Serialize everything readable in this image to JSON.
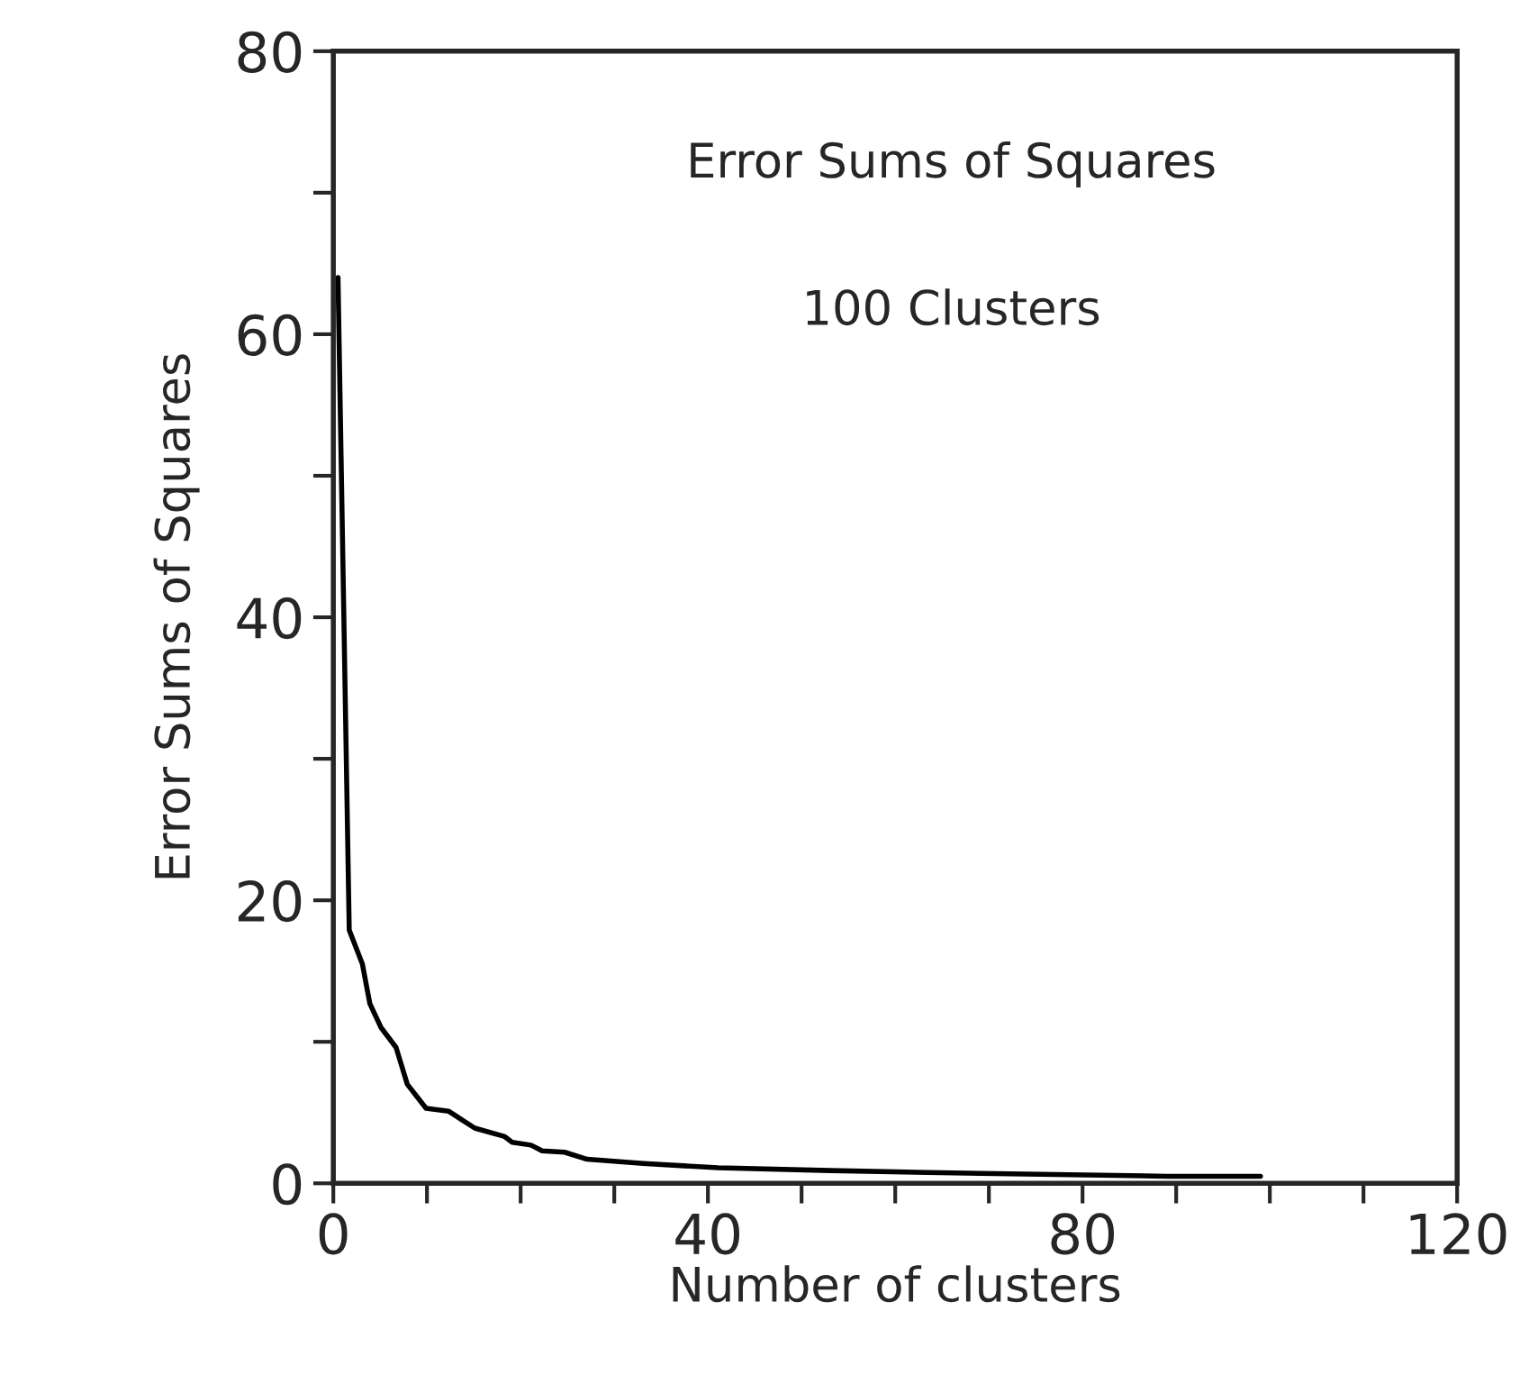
{
  "chart_data": {
    "type": "line",
    "xlabel": "Number of clusters",
    "ylabel": "Error Sums of Squares",
    "annotations": [
      "Error Sums of Squares",
      "100 Clusters"
    ],
    "x": [
      0.5,
      1.7,
      3.1,
      3.9,
      5.1,
      6.7,
      7.9,
      9.9,
      12.3,
      15.1,
      18.3,
      19.1,
      21.1,
      22.3,
      24.7,
      27.1,
      33.1,
      41.1,
      53.1,
      69.1,
      89,
      99
    ],
    "series": [
      {
        "color": "#000000",
        "values": [
          64.0,
          17.9,
          15.5,
          12.7,
          11.0,
          9.6,
          7.0,
          5.3,
          5.1,
          3.9,
          3.3,
          2.9,
          2.7,
          2.3,
          2.2,
          1.7,
          1.4,
          1.1,
          0.9,
          0.7,
          0.5,
          0.5
        ]
      }
    ],
    "xlim": [
      0,
      120
    ],
    "ylim": [
      0,
      80
    ],
    "xticks": [
      0,
      {
        "value": 10,
        "label": null
      },
      {
        "value": 20,
        "label": null
      },
      {
        "value": 30,
        "label": null
      },
      40,
      {
        "value": 50,
        "label": null
      },
      {
        "value": 60,
        "label": null
      },
      {
        "value": 70,
        "label": null
      },
      80,
      {
        "value": 90,
        "label": null
      },
      {
        "value": 100,
        "label": null
      },
      {
        "value": 110,
        "label": null
      },
      120
    ],
    "yticks": [
      0,
      {
        "value": 10,
        "label": null
      },
      20,
      {
        "value": 30,
        "label": null
      },
      40,
      {
        "value": 50,
        "label": null
      },
      60,
      {
        "value": 70,
        "label": null
      },
      80
    ],
    "grid": false,
    "legend": false,
    "marker": "none",
    "line_style": "solid"
  }
}
